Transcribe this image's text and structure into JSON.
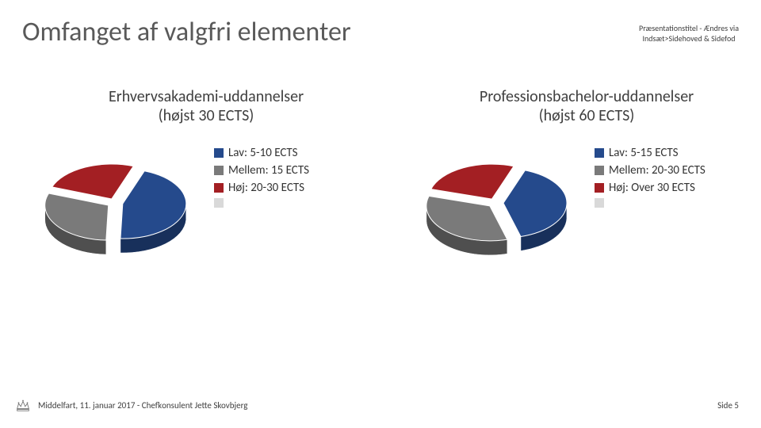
{
  "title": "Omfanget af valgfri elementer",
  "header_note_line1": "Præsentationstitel - Ændres via",
  "header_note_line2": "Indsæt>Sidehoved & Sidefod",
  "charts": {
    "left": {
      "title_line1": "Erhvervsakademi-uddannelser",
      "title_line2": "(højst 30 ECTS)",
      "type": "pie-3d-exploded",
      "slices": [
        {
          "label": "Lav: 5-10 ECTS",
          "value": 45,
          "color": "#254a8c"
        },
        {
          "label": "Mellem: 15 ECTS",
          "value": 30,
          "color": "#7a7a7a"
        },
        {
          "label": "Høj: 20-30 ECTS",
          "value": 25,
          "color": "#a31f23"
        },
        {
          "label": "",
          "value": 0,
          "color": "#d9d9d9"
        }
      ],
      "legend_fontsize": 15,
      "background_color": "#ffffff"
    },
    "right": {
      "title_line1": "Professionsbachelor-uddannelser",
      "title_line2": "(højst 60 ECTS)",
      "type": "pie-3d-exploded",
      "slices": [
        {
          "label": "Lav: 5-15 ECTS",
          "value": 40,
          "color": "#254a8c"
        },
        {
          "label": "Mellem: 20-30 ECTS",
          "value": 34,
          "color": "#7a7a7a"
        },
        {
          "label": "Høj: Over 30 ECTS",
          "value": 26,
          "color": "#a31f23"
        },
        {
          "label": "",
          "value": 0,
          "color": "#d9d9d9"
        }
      ],
      "legend_fontsize": 15,
      "background_color": "#ffffff"
    }
  },
  "footer": {
    "text": "Middelfart, 11. januar 2017 - Chefkonsulent Jette Skovbjerg",
    "page_label": "Side 5"
  },
  "colors": {
    "title_color": "#595959",
    "text_color": "#404040",
    "bg": "#ffffff"
  },
  "title_fontsize": 34,
  "chart_title_fontsize": 20,
  "footer_fontsize": 11
}
